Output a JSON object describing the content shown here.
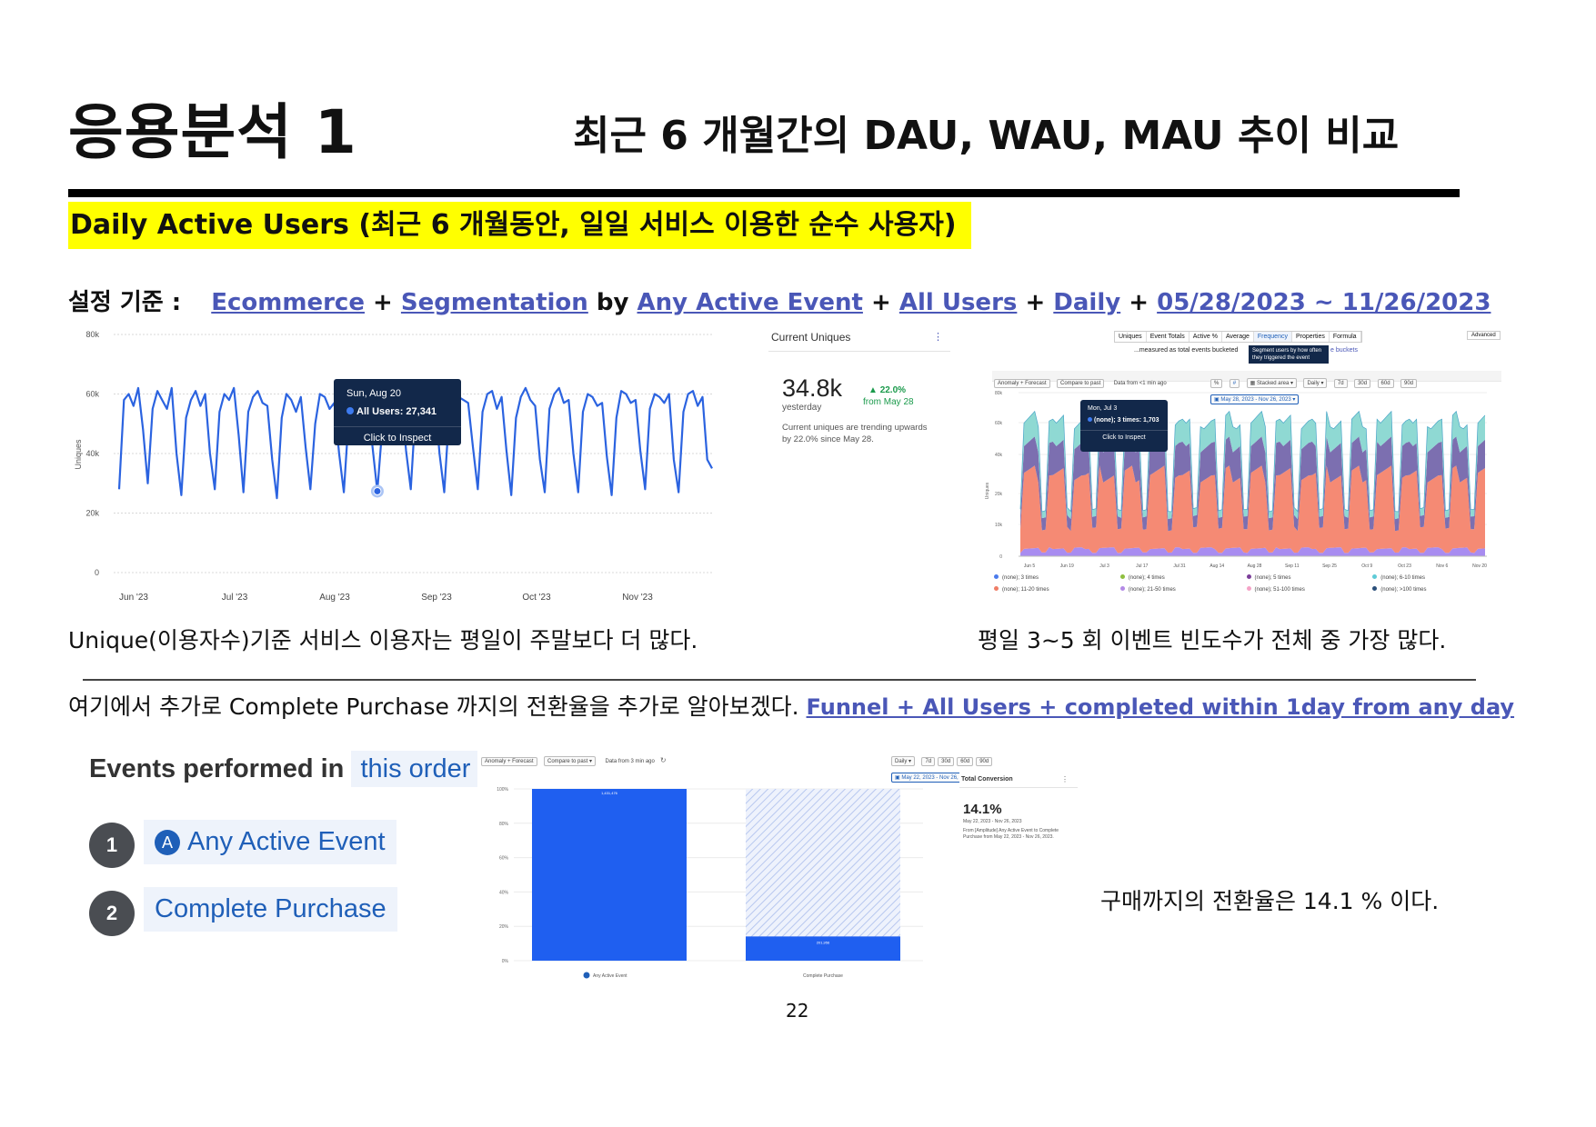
{
  "header": {
    "title": "응용분석 1",
    "subtitle": "최근 6 개월간의 DAU, WAU, MAU 추이 비교"
  },
  "section": {
    "heading": "Daily Active Users (최근 6 개월동안, 일일 서비스 이용한 순수 사용자)"
  },
  "config": {
    "label": "설정 기준 :",
    "ecommerce": "Ecommerce",
    "plus": "+",
    "segmentation": "Segmentation",
    "by": "by",
    "event": "Any Active Event",
    "users": "All Users",
    "interval": "Daily",
    "range": "05/28/2023 ~ 11/26/2023"
  },
  "dau_chart": {
    "ylabel": "Uniques",
    "tooltip_date": "Sun, Aug 20",
    "tooltip_label": "All Users: 27,341",
    "tooltip_action": "Click to Inspect"
  },
  "current_uniques": {
    "title": "Current Uniques",
    "value": "34.8k",
    "change": "22.0%",
    "since": "from May 28",
    "when": "yesterday",
    "note": "Current uniques are trending upwards by 22.0% since May 28."
  },
  "freq_chart": {
    "tabs": [
      "Uniques",
      "Event Totals",
      "Active %",
      "Average",
      "Frequency",
      "Properties",
      "Formula"
    ],
    "advanced": "Advanced",
    "measured": "...measured as total events bucketed",
    "tip_top": "Segment users by how often they triggered the event",
    "buckets": "e buckets",
    "toolbar": [
      "Anomaly + Forecast",
      "Compare to past",
      "Data from <1 min ago"
    ],
    "chart_mode": "Stacked area",
    "interval": "Daily",
    "ranges": [
      "7d",
      "30d",
      "60d",
      "90d"
    ],
    "date_range": "May 28, 2023 - Nov 26, 2023",
    "ylabel": "Uniques",
    "tooltip_date": "Mon, Jul 3",
    "tooltip_label": "(none); 3 times: 1,703",
    "tooltip_action": "Click to Inspect",
    "legend": [
      "(none); 3 times",
      "(none); 4 times",
      "(none); 5 times",
      "(none); 6-10 times",
      "(none); 11-20 times",
      "(none); 21-50 times",
      "(none); 51-100 times",
      "(none); >100 times"
    ]
  },
  "captions": {
    "left": "Unique(이용자수)기준 서비스 이용자는 평일이 주말보다 더 많다.",
    "right": "평일 3~5 회 이벤트 빈도수가 전체 중 가장 많다.",
    "funnel_intro": "여기에서 추가로 Complete Purchase 까지의 전환율을 추가로 알아보겠다.",
    "funnel_link": "Funnel + All Users + completed within 1day from any day",
    "conversion": "구매까지의 전환율은 14.1 % 이다."
  },
  "events": {
    "heading": "Events performed in",
    "order": "this order",
    "steps": [
      {
        "num": "1",
        "label": "Any Active Event"
      },
      {
        "num": "2",
        "label": "Complete Purchase"
      }
    ]
  },
  "funnel_chart": {
    "toolbar": [
      "Anomaly + Forecast",
      "Compare to past",
      "Data from 3 min ago"
    ],
    "interval": "Daily",
    "ranges": [
      "7d",
      "30d",
      "60d",
      "90d"
    ],
    "date_range": "May 22, 2023 - Nov 26, 2023",
    "bar1_label": "Any Active Event",
    "bar2_label": "Complete Purchase",
    "bar1_value": "1,431,476",
    "bar2_value": "201,956",
    "total_title": "Total Conversion",
    "total_value": "14.1%",
    "total_range": "May 22, 2023 - Nov 26, 2023",
    "total_note": "From [Amplitude] Any Active Event to Complete Purchase from May 22, 2023 - Nov 26, 2023."
  },
  "footer": {
    "page": "22"
  },
  "chart_data": [
    {
      "type": "line",
      "ylabel": "Uniques",
      "x_ticks": [
        "Jun '23",
        "Jul '23",
        "Aug '23",
        "Sep '23",
        "Oct '23",
        "Nov '23"
      ],
      "y_ticks": [
        "0",
        "20k",
        "40k",
        "60k",
        "80k"
      ],
      "ylim": [
        0,
        80000
      ],
      "grid": true,
      "series": [
        {
          "values": [
            28000,
            58000,
            60000,
            56000,
            62000,
            48000,
            30000,
            55000,
            61000,
            58000,
            55000,
            62000,
            40000,
            26000,
            52000,
            58000,
            61000,
            56000,
            60000,
            40000,
            28000,
            54000,
            60000,
            58000,
            62000,
            46000,
            27000,
            54000,
            59000,
            61000,
            57000,
            56000,
            38000,
            25000,
            52000,
            60000,
            58000,
            54000,
            59000,
            42000,
            28000,
            50000,
            60000,
            59000,
            55000,
            57000,
            40000,
            27000,
            52000,
            58000,
            61000,
            56000,
            58000,
            42000,
            27341,
            48000,
            59000,
            58000,
            57000,
            60000,
            41000,
            28000,
            55000,
            62000,
            58000,
            56000,
            59000,
            40000,
            27000,
            53000,
            60000,
            59000,
            58000,
            57000,
            42000,
            28000,
            54000,
            60000,
            61000,
            55000,
            59000,
            41000,
            26000,
            52000,
            59000,
            62000,
            58000,
            56000,
            38000,
            27000,
            55000,
            60000,
            62000,
            57000,
            58000,
            40000,
            27000,
            54000,
            60000,
            59000,
            56000,
            57000,
            39000,
            26000,
            52000,
            61000,
            60000,
            57000,
            58000,
            41000,
            28000,
            55000,
            60000,
            59000,
            57000,
            60000,
            38000,
            27000,
            54000,
            60000,
            61000,
            56000,
            59000,
            38000,
            35000
          ]
        }
      ]
    },
    {
      "type": "area",
      "stacked": true,
      "ylabel": "Uniques",
      "x_ticks": [
        "Jun 5",
        "Jun 19",
        "Jul 3",
        "Jul 17",
        "Jul 31",
        "Aug 14",
        "Aug 28",
        "Sep 11",
        "Sep 25",
        "Oct 9",
        "Oct 23",
        "Nov 6",
        "Nov 20"
      ],
      "y_ticks": [
        "0",
        "10k",
        "20k",
        "40k",
        "60k",
        "80k"
      ],
      "note": "weekly pattern: weekday peaks, weekend dips",
      "series": [
        {
          "name": "(none); 3 times",
          "peak": 3500,
          "dip": 1500
        },
        {
          "name": "(none); 4 times",
          "peak": 32000,
          "dip": 10000
        },
        {
          "name": "(none); 5 times",
          "peak": 13000,
          "dip": 5000
        },
        {
          "name": "(none); 6-10 times",
          "peak": 10000,
          "dip": 3000
        }
      ]
    },
    {
      "type": "bar",
      "categories": [
        "Any Active Event",
        "Complete Purchase"
      ],
      "values": [
        100,
        14.1
      ],
      "value_labels": [
        "1,431,476",
        "201,956"
      ],
      "y_ticks": [
        "0%",
        "20%",
        "40%",
        "60%",
        "80%",
        "100%"
      ],
      "ylim": [
        0,
        100
      ]
    }
  ]
}
